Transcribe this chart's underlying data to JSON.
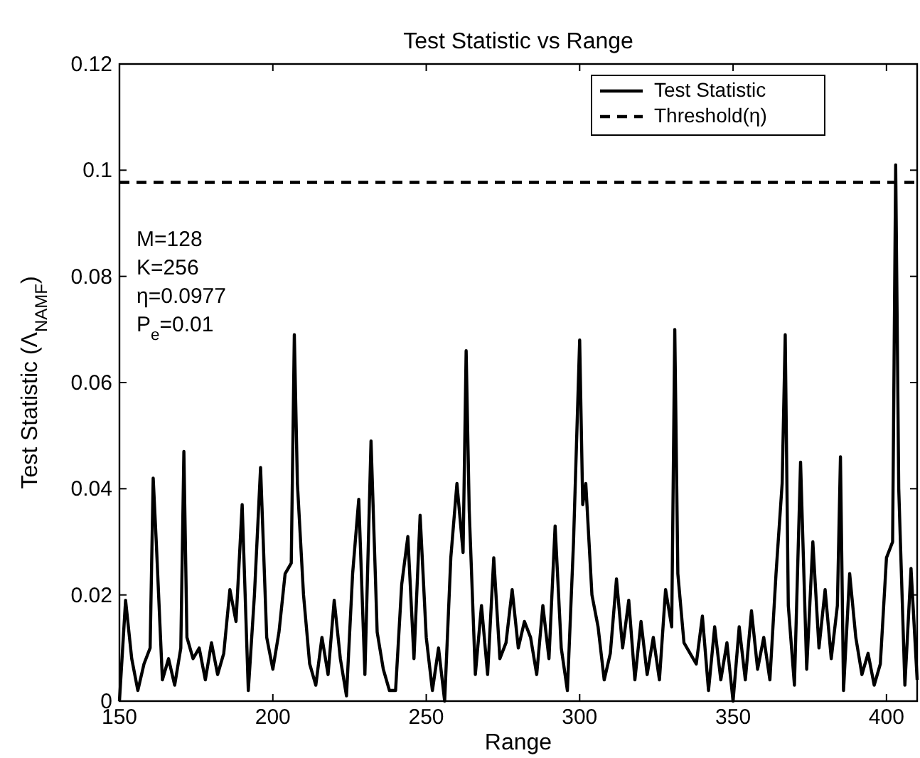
{
  "chart_data": {
    "type": "line",
    "title": "Test Statistic vs Range",
    "xlabel": "Range",
    "ylabel": "Test Statistic (Λ$_{NAMF}$)",
    "annotations": [
      "M=128",
      "K=256",
      "η=0.0977",
      "P$_{e}$=0.01"
    ],
    "x": [
      150,
      152,
      154,
      156,
      158,
      160,
      161,
      162,
      164,
      166,
      168,
      170,
      171,
      172,
      174,
      176,
      178,
      180,
      182,
      184,
      186,
      188,
      190,
      192,
      194,
      196,
      198,
      200,
      202,
      204,
      206,
      207,
      208,
      210,
      212,
      214,
      216,
      218,
      220,
      222,
      224,
      226,
      228,
      230,
      232,
      234,
      236,
      238,
      240,
      242,
      244,
      246,
      248,
      250,
      252,
      254,
      256,
      258,
      260,
      262,
      263,
      264,
      266,
      268,
      270,
      272,
      274,
      276,
      278,
      280,
      282,
      284,
      286,
      288,
      290,
      292,
      294,
      296,
      298,
      300,
      301,
      302,
      304,
      306,
      308,
      310,
      312,
      314,
      316,
      318,
      320,
      322,
      324,
      326,
      328,
      330,
      331,
      332,
      334,
      336,
      338,
      340,
      342,
      344,
      346,
      348,
      350,
      352,
      354,
      356,
      358,
      360,
      362,
      364,
      366,
      367,
      368,
      370,
      372,
      374,
      376,
      378,
      380,
      382,
      384,
      385,
      386,
      388,
      390,
      392,
      394,
      396,
      398,
      400,
      402,
      403,
      404,
      406,
      408,
      410
    ],
    "series": [
      {
        "name": "Test Statistic",
        "color": "#000000",
        "values": [
          0.0,
          0.019,
          0.008,
          0.002,
          0.007,
          0.01,
          0.042,
          0.03,
          0.004,
          0.008,
          0.003,
          0.01,
          0.047,
          0.012,
          0.008,
          0.01,
          0.004,
          0.011,
          0.005,
          0.009,
          0.021,
          0.015,
          0.037,
          0.002,
          0.02,
          0.044,
          0.012,
          0.006,
          0.013,
          0.024,
          0.026,
          0.069,
          0.041,
          0.02,
          0.007,
          0.003,
          0.012,
          0.005,
          0.019,
          0.008,
          0.001,
          0.024,
          0.038,
          0.005,
          0.049,
          0.013,
          0.006,
          0.002,
          0.002,
          0.022,
          0.031,
          0.008,
          0.035,
          0.012,
          0.002,
          0.01,
          0.0,
          0.027,
          0.041,
          0.028,
          0.066,
          0.036,
          0.005,
          0.018,
          0.005,
          0.027,
          0.008,
          0.011,
          0.021,
          0.01,
          0.015,
          0.012,
          0.005,
          0.018,
          0.008,
          0.033,
          0.01,
          0.002,
          0.03,
          0.068,
          0.037,
          0.041,
          0.02,
          0.014,
          0.004,
          0.009,
          0.023,
          0.01,
          0.019,
          0.004,
          0.015,
          0.005,
          0.012,
          0.004,
          0.021,
          0.014,
          0.07,
          0.024,
          0.011,
          0.009,
          0.007,
          0.016,
          0.002,
          0.014,
          0.004,
          0.011,
          0.0,
          0.014,
          0.004,
          0.017,
          0.006,
          0.012,
          0.004,
          0.024,
          0.041,
          0.069,
          0.018,
          0.003,
          0.045,
          0.006,
          0.03,
          0.01,
          0.021,
          0.008,
          0.018,
          0.046,
          0.002,
          0.024,
          0.012,
          0.005,
          0.009,
          0.003,
          0.007,
          0.027,
          0.03,
          0.101,
          0.04,
          0.003,
          0.025,
          0.004
        ]
      }
    ],
    "ref_lines": [
      {
        "axis": "y",
        "value": 0.0977,
        "label": "Threshold(η)",
        "color": "#000000",
        "line_style": "dashed"
      }
    ],
    "xlim": [
      150,
      410
    ],
    "xticks": [
      150,
      200,
      250,
      300,
      350,
      400
    ],
    "ylim": [
      0,
      0.12
    ],
    "yticks": [
      0,
      0.02,
      0.04,
      0.06,
      0.08,
      0.1,
      0.12
    ],
    "grid": false,
    "legend": "top right",
    "marker": "none",
    "line_style": "solid"
  }
}
